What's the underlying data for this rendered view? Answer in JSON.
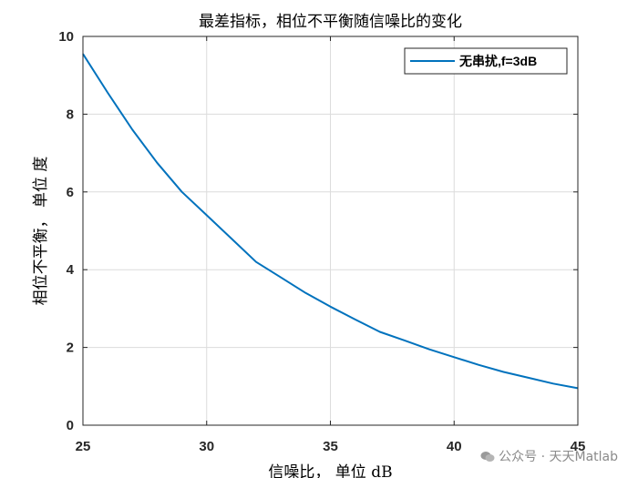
{
  "chart_data": {
    "type": "line",
    "title": "最差指标，相位不平衡随信噪比的变化",
    "xlabel": "信噪比， 单位 dB",
    "ylabel": "相位不平衡， 单位 度",
    "xlim": [
      25,
      45
    ],
    "ylim": [
      0,
      10
    ],
    "xticks": [
      25,
      30,
      35,
      40,
      45
    ],
    "yticks": [
      0,
      2,
      4,
      6,
      8,
      10
    ],
    "grid": true,
    "legend_position": "top-right",
    "series": [
      {
        "name": "无串扰,f=3dB",
        "color": "#0072BD",
        "x": [
          25,
          26,
          27,
          28,
          29,
          30,
          31,
          32,
          33,
          34,
          35,
          36,
          37,
          38,
          39,
          40,
          41,
          42,
          43,
          44,
          45
        ],
        "y": [
          9.55,
          8.55,
          7.6,
          6.75,
          6.0,
          5.4,
          4.8,
          4.2,
          3.8,
          3.4,
          3.05,
          2.72,
          2.4,
          2.18,
          1.95,
          1.75,
          1.55,
          1.37,
          1.22,
          1.07,
          0.95
        ]
      }
    ]
  },
  "watermark": {
    "text": "公众号 · 天天Matlab",
    "icon": "wechat-icon"
  }
}
